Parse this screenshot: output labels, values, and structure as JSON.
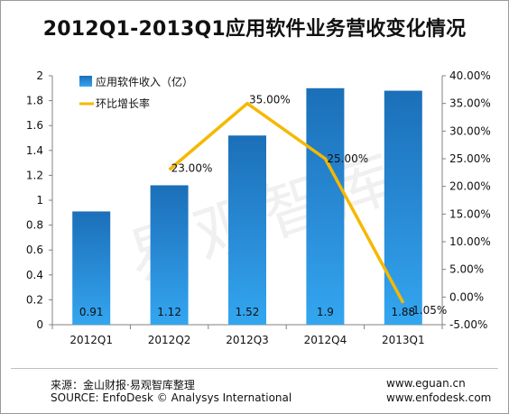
{
  "chart_data": {
    "type": "bar",
    "title": "2012Q1-2013Q1应用软件业务营收变化情况",
    "categories": [
      "2012Q1",
      "2012Q2",
      "2012Q3",
      "2012Q4",
      "2013Q1"
    ],
    "series": [
      {
        "name": "应用软件收入（亿）",
        "kind": "bar",
        "axis": "left",
        "values": [
          0.91,
          1.12,
          1.52,
          1.9,
          1.88
        ],
        "value_labels": [
          "0.91",
          "1.12",
          "1.52",
          "1.9",
          "1.88"
        ],
        "color": "#1f7fc8"
      },
      {
        "name": "环比增长率",
        "kind": "line",
        "axis": "right",
        "values": [
          null,
          23.0,
          35.0,
          25.0,
          -1.05
        ],
        "value_labels": [
          "",
          "23.00%",
          "35.00%",
          "25.00%",
          "-1.05%"
        ],
        "color": "#f5b800"
      }
    ],
    "y_left": {
      "lim": [
        0,
        2
      ],
      "ticks": [
        0,
        0.2,
        0.4,
        0.6,
        0.8,
        1,
        1.2,
        1.4,
        1.6,
        1.8,
        2
      ],
      "tick_labels": [
        "0",
        "0.2",
        "0.4",
        "0.6",
        "0.8",
        "1",
        "1.2",
        "1.4",
        "1.6",
        "1.8",
        "2"
      ]
    },
    "y_right": {
      "lim": [
        -5,
        40
      ],
      "ticks": [
        -5,
        0,
        5,
        10,
        15,
        20,
        25,
        30,
        35,
        40
      ],
      "tick_labels": [
        "-5.00%",
        "0.00%",
        "5.00%",
        "10.00%",
        "15.00%",
        "20.00%",
        "25.00%",
        "30.00%",
        "35.00%",
        "40.00%"
      ]
    },
    "grid": false,
    "legend": "top-left"
  },
  "watermark": "易观智库",
  "footer": {
    "source_cn": "来源：金山财报·易观智库整理",
    "source_en": "SOURCE: EnfoDesk © Analysys International",
    "url1": "www.eguan.cn",
    "url2": "www.enfodesk.com"
  }
}
